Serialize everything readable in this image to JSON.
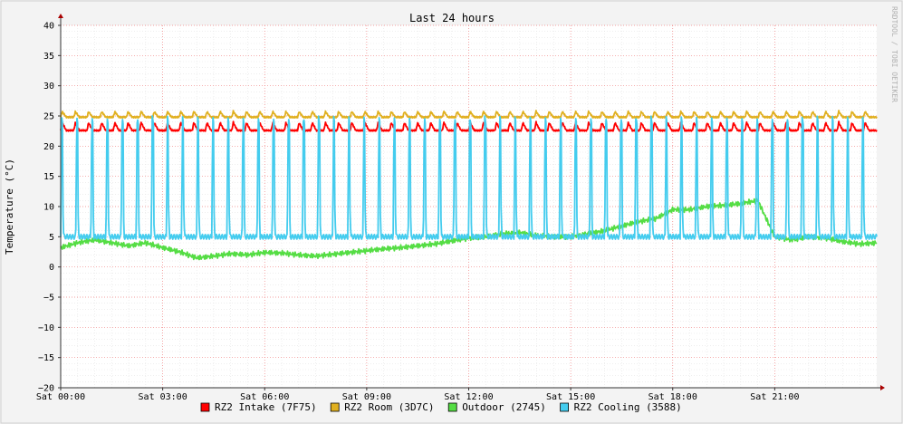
{
  "chart_data": {
    "type": "line",
    "title": "Last 24 hours",
    "ylabel": "Temperature (°C)",
    "xlabel": "",
    "watermark": "RRDTOOL / TOBI OETIKER",
    "ylim": [
      -20,
      40
    ],
    "yticks": [
      40,
      35,
      30,
      25,
      20,
      15,
      10,
      5,
      0,
      -5,
      -10,
      -15,
      -20
    ],
    "xlim_hours": [
      0,
      24
    ],
    "xticks": [
      {
        "hour": 0,
        "label": "Sat 00:00"
      },
      {
        "hour": 3,
        "label": "Sat 03:00"
      },
      {
        "hour": 6,
        "label": "Sat 06:00"
      },
      {
        "hour": 9,
        "label": "Sat 09:00"
      },
      {
        "hour": 12,
        "label": "Sat 12:00"
      },
      {
        "hour": 15,
        "label": "Sat 15:00"
      },
      {
        "hour": 18,
        "label": "Sat 18:00"
      },
      {
        "hour": 21,
        "label": "Sat 21:00"
      }
    ],
    "grid": true,
    "legend_position": "bottom",
    "series": [
      {
        "name": "RZ2 Intake (7F75)",
        "color": "#ff0000",
        "pattern": "sawtooth",
        "base": 22.6,
        "amplitude": 1.4,
        "cycles": 62
      },
      {
        "name": "RZ2 Room (3D7C)",
        "color": "#e0b020",
        "pattern": "sawtooth",
        "base": 24.8,
        "amplitude": 1.0,
        "cycles": 62
      },
      {
        "name": "Outdoor (2745)",
        "color": "#55dd44",
        "pattern": "smooth",
        "x": [
          0,
          0.5,
          1,
          1.5,
          2,
          2.5,
          3,
          3.5,
          4,
          4.5,
          5,
          5.5,
          6,
          6.5,
          7,
          7.5,
          8,
          8.5,
          9,
          9.5,
          10,
          10.5,
          11,
          11.5,
          12,
          12.5,
          13,
          13.5,
          14,
          14.5,
          15,
          15.5,
          16,
          16.5,
          17,
          17.5,
          18,
          18.5,
          19,
          19.5,
          20,
          20.5,
          21,
          21.5,
          22,
          22.5,
          23,
          23.5,
          24
        ],
        "y": [
          3.2,
          4.0,
          4.5,
          4.0,
          3.5,
          4.0,
          3.2,
          2.5,
          1.5,
          1.8,
          2.2,
          2.0,
          2.4,
          2.3,
          2.0,
          1.8,
          2.1,
          2.4,
          2.7,
          3.0,
          3.2,
          3.5,
          3.8,
          4.3,
          4.8,
          5.0,
          5.5,
          5.7,
          5.2,
          5.0,
          5.0,
          5.5,
          6.0,
          6.8,
          7.5,
          8.0,
          9.5,
          9.5,
          10.0,
          10.2,
          10.5,
          11.0,
          5.0,
          4.5,
          5.0,
          4.8,
          4.2,
          3.8,
          4.0
        ]
      },
      {
        "name": "RZ2 Cooling (3588)",
        "color": "#44ccee",
        "pattern": "spikes",
        "base": 5.0,
        "peak": 25.0,
        "cycles": 54
      }
    ]
  }
}
